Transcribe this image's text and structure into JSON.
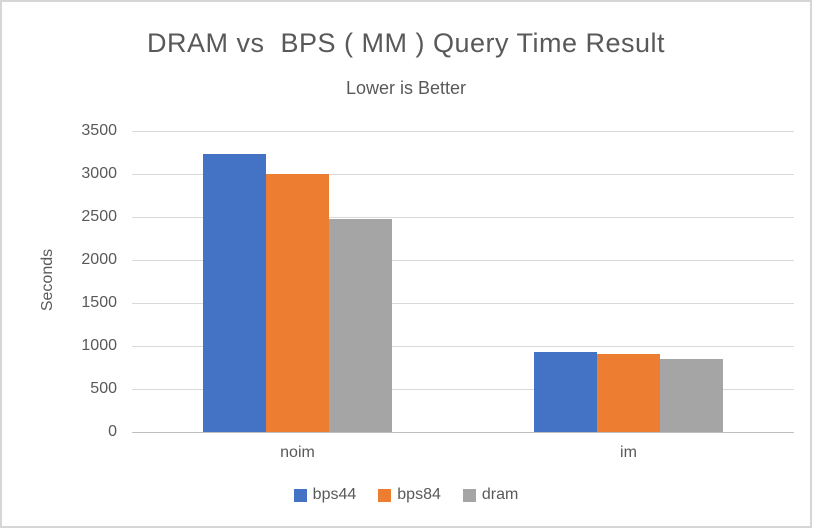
{
  "frame": {
    "background": "#ffffff",
    "border_color": "#d6d6d6"
  },
  "chart_data": {
    "type": "bar",
    "title": "DRAM vs  BPS ( MM ) Query Time Result",
    "subtitle": "Lower is Better",
    "xlabel": "",
    "ylabel": "Seconds",
    "categories": [
      "noim",
      "im"
    ],
    "series": [
      {
        "name": "bps44",
        "color": "#4472C4",
        "values": [
          3230,
          930
        ]
      },
      {
        "name": "bps84",
        "color": "#ED7D31",
        "values": [
          3000,
          910
        ]
      },
      {
        "name": "dram",
        "color": "#A5A5A5",
        "values": [
          2480,
          850
        ]
      }
    ],
    "ylim": [
      0,
      3500
    ],
    "yticks": [
      0,
      500,
      1000,
      1500,
      2000,
      2500,
      3000,
      3500
    ],
    "grid": true,
    "legend_position": "bottom",
    "text_color": "#595959",
    "gridline_color": "#d9d9d9",
    "axis_line_color": "#bfbfbf"
  }
}
